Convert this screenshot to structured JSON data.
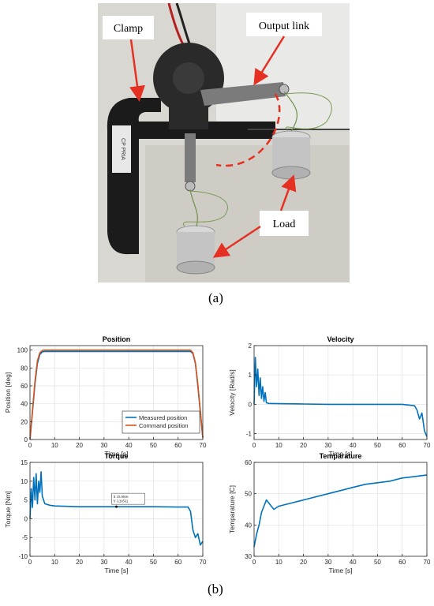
{
  "figure": {
    "photo": {
      "labels": {
        "clamp": "Clamp",
        "output_link": "Output link",
        "load": "Load"
      },
      "plate_text": "CP PRIA"
    },
    "caption_a": "(a)",
    "caption_b": "(b)"
  },
  "colors": {
    "blue": "#0072BD",
    "orange": "#D95319",
    "arrow_red": "#E53022"
  },
  "chart_data": [
    {
      "type": "line",
      "title": "Position",
      "xlabel": "Time [s]",
      "ylabel": "Position [deg]",
      "xlim": [
        0,
        70
      ],
      "ylim": [
        0,
        105
      ],
      "xticks": [
        0,
        10,
        20,
        30,
        40,
        50,
        60,
        70
      ],
      "yticks": [
        0,
        20,
        40,
        60,
        80,
        100
      ],
      "grid": true,
      "legend": "bottom-right",
      "series": [
        {
          "name": "Measured position",
          "color": "#0072BD",
          "x": [
            0,
            1,
            2,
            3,
            4,
            5,
            6,
            10,
            20,
            30,
            40,
            50,
            60,
            65,
            66,
            67,
            68,
            69,
            70
          ],
          "y": [
            0,
            30,
            62,
            85,
            95,
            98,
            98.5,
            98.5,
            98.5,
            98.5,
            98.5,
            98.5,
            98.5,
            98.5,
            96,
            85,
            60,
            30,
            2
          ]
        },
        {
          "name": "Command position",
          "color": "#D95319",
          "x": [
            0,
            1,
            2,
            3,
            4,
            5,
            6,
            10,
            20,
            30,
            40,
            50,
            60,
            65,
            66,
            67,
            68,
            69,
            70
          ],
          "y": [
            0,
            32,
            65,
            88,
            97,
            99.5,
            100,
            100,
            100,
            100,
            100,
            100,
            100,
            100,
            97,
            86,
            62,
            32,
            2
          ]
        }
      ]
    },
    {
      "type": "line",
      "title": "Velocity",
      "xlabel": "Time [s]",
      "ylabel": "Velocity [Rad/s]",
      "xlim": [
        0,
        70
      ],
      "ylim": [
        -1.2,
        2
      ],
      "xticks": [
        0,
        10,
        20,
        30,
        40,
        50,
        60,
        70
      ],
      "yticks": [
        -1,
        0,
        1,
        2
      ],
      "grid": true,
      "series": [
        {
          "color": "#0072BD",
          "x": [
            0,
            0.5,
            1,
            1.5,
            2,
            2.5,
            3,
            3.5,
            4,
            4.5,
            5,
            6,
            10,
            20,
            30,
            40,
            50,
            60,
            65,
            66,
            67,
            68,
            69,
            70
          ],
          "y": [
            0,
            1.6,
            0.6,
            1.2,
            0.3,
            0.9,
            0.2,
            0.6,
            0.1,
            0.4,
            0.05,
            0.03,
            0.02,
            0.01,
            0.0,
            0.0,
            0.0,
            0.0,
            -0.05,
            -0.2,
            -0.5,
            -0.3,
            -0.9,
            -1.1
          ]
        }
      ]
    },
    {
      "type": "line",
      "title": "Torque",
      "xlabel": "Time [s]",
      "ylabel": "Torque [Nm]",
      "xlim": [
        0,
        70
      ],
      "ylim": [
        -10,
        15
      ],
      "xticks": [
        0,
        10,
        20,
        30,
        40,
        50,
        60,
        70
      ],
      "yticks": [
        -10,
        -5,
        0,
        5,
        10,
        15
      ],
      "grid": true,
      "annotation": {
        "x_label": "X 35.0016",
        "y_label": "Y 3.20532",
        "x": 35.0016,
        "y": 3.20532
      },
      "series": [
        {
          "color": "#0072BD",
          "x": [
            0,
            0.5,
            1,
            1.5,
            2,
            2.5,
            3,
            3.5,
            4,
            4.5,
            5,
            6,
            8,
            10,
            20,
            30,
            40,
            50,
            60,
            64,
            65,
            66,
            67,
            68,
            69,
            70
          ],
          "y": [
            0,
            8,
            3,
            11,
            5,
            12,
            4,
            10,
            7,
            12.5,
            6,
            4,
            3.6,
            3.4,
            3.2,
            3.2,
            3.2,
            3.2,
            3.1,
            3.1,
            2,
            -3,
            -5,
            -4,
            -7,
            -6
          ]
        }
      ]
    },
    {
      "type": "line",
      "title": "Temparature",
      "xlabel": "Time [s]",
      "ylabel": "Temparature [C]",
      "xlim": [
        0,
        70
      ],
      "ylim": [
        30,
        60
      ],
      "xticks": [
        0,
        10,
        20,
        30,
        40,
        50,
        60,
        70
      ],
      "yticks": [
        30,
        40,
        50,
        60
      ],
      "grid": true,
      "series": [
        {
          "color": "#0072BD",
          "x": [
            0,
            1,
            2,
            3,
            4,
            5,
            6,
            8,
            10,
            15,
            20,
            25,
            30,
            35,
            40,
            45,
            50,
            55,
            60,
            65,
            70
          ],
          "y": [
            33,
            37,
            40,
            44,
            46,
            48,
            47,
            45,
            46,
            47,
            48,
            49,
            50,
            51,
            52,
            53,
            53.5,
            54,
            55,
            55.5,
            56
          ]
        }
      ]
    }
  ]
}
